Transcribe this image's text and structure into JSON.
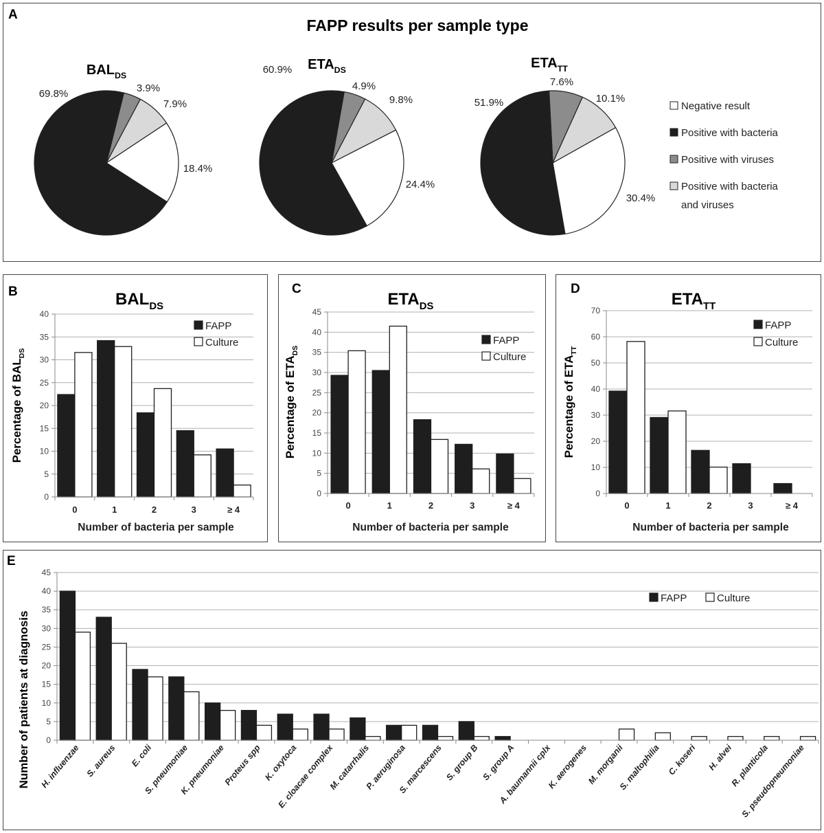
{
  "panel_a": {
    "letter": "A",
    "title": "FAPP results per sample type",
    "legend": [
      "Negative result",
      "Positive with bacteria",
      "Positive with viruses",
      "Positive with bacteria",
      "and viruses"
    ]
  },
  "colors": {
    "negative": "#ffffff",
    "bacteria": "#1e1e1e",
    "viruses": "#8c8c8c",
    "both": "#d9d9d9",
    "fapp": "#1e1e1e",
    "culture": "#ffffff",
    "grid": "#b0b0b0"
  },
  "chart_data": [
    {
      "type": "pie",
      "title": {
        "main": "BAL",
        "sub": "DS"
      },
      "categories": [
        "Negative result",
        "Positive with bacteria",
        "Positive with viruses",
        "Positive with bacteria and viruses"
      ],
      "values": [
        18.4,
        69.8,
        3.9,
        7.9
      ],
      "labels": [
        "18.4%",
        "69.8%",
        "3.9%",
        "7.9%"
      ]
    },
    {
      "type": "pie",
      "title": {
        "main": "ETA",
        "sub": "DS"
      },
      "categories": [
        "Negative result",
        "Positive with bacteria",
        "Positive with viruses",
        "Positive with bacteria and viruses"
      ],
      "values": [
        24.4,
        60.9,
        4.9,
        9.8
      ],
      "labels": [
        "24.4%",
        "60.9%",
        "4.9%",
        "9.8%"
      ]
    },
    {
      "type": "pie",
      "title": {
        "main": "ETA",
        "sub": "TT"
      },
      "categories": [
        "Negative result",
        "Positive with bacteria",
        "Positive with viruses",
        "Positive with bacteria and viruses"
      ],
      "values": [
        30.4,
        51.9,
        7.6,
        10.1
      ],
      "labels": [
        "30.4%",
        "51.9%",
        "7.6%",
        "10.1%"
      ]
    },
    {
      "type": "bar",
      "letter": "B",
      "title": {
        "main": "BAL",
        "sub": "DS"
      },
      "ylabel": {
        "main": "Percentage of BAL",
        "sub": "DS"
      },
      "xlabel": "Number of bacteria per sample",
      "categories": [
        "0",
        "1",
        "2",
        "3",
        "≥ 4"
      ],
      "ylim": [
        0,
        40
      ],
      "yticks": [
        "0",
        "5",
        "10",
        "15",
        "20",
        "25",
        "30",
        "35",
        "40"
      ],
      "grid": true,
      "legend_position": "top-right",
      "series": [
        {
          "name": "FAPP",
          "values": [
            22.4,
            34.2,
            18.4,
            14.5,
            10.5
          ]
        },
        {
          "name": "Culture",
          "values": [
            31.6,
            32.9,
            23.7,
            9.2,
            2.6
          ]
        }
      ]
    },
    {
      "type": "bar",
      "letter": "C",
      "title": {
        "main": "ETA",
        "sub": "DS"
      },
      "ylabel": {
        "main": "Percentage of ETA",
        "sub": "DS"
      },
      "xlabel": "Number of bacteria per sample",
      "categories": [
        "0",
        "1",
        "2",
        "3",
        "≥ 4"
      ],
      "ylim": [
        0,
        45
      ],
      "yticks": [
        "0",
        "5",
        "10",
        "15",
        "20",
        "25",
        "30",
        "35",
        "40",
        "45"
      ],
      "grid": true,
      "legend_position": "top-right",
      "series": [
        {
          "name": "FAPP",
          "values": [
            29.3,
            30.5,
            18.3,
            12.2,
            9.8
          ]
        },
        {
          "name": "Culture",
          "values": [
            35.4,
            41.5,
            13.4,
            6.1,
            3.7
          ]
        }
      ]
    },
    {
      "type": "bar",
      "letter": "D",
      "title": {
        "main": "ETA",
        "sub": "TT"
      },
      "ylabel": {
        "main": "Percentage of ETA",
        "sub": "TT"
      },
      "xlabel": "Number of bacteria per sample",
      "categories": [
        "0",
        "1",
        "2",
        "3",
        "≥ 4"
      ],
      "ylim": [
        0,
        70
      ],
      "yticks": [
        "0",
        "10",
        "20",
        "30",
        "40",
        "50",
        "60",
        "70"
      ],
      "grid": true,
      "legend_position": "top-right",
      "series": [
        {
          "name": "FAPP",
          "values": [
            39.2,
            29.1,
            16.5,
            11.4,
            3.8
          ]
        },
        {
          "name": "Culture",
          "values": [
            58.2,
            31.6,
            10.1,
            0,
            0
          ]
        }
      ]
    },
    {
      "type": "bar",
      "letter": "E",
      "ylabel": {
        "main": "Number of patients at diagnosis",
        "sub": ""
      },
      "xlabel": "",
      "categories": [
        "H. influenzae",
        "S. aureus",
        "E. coli",
        "S. pneumoniae",
        "K. pneumoniae",
        "Proteus spp",
        "K. oxytoca",
        "E. cloacae complex",
        "M. catarrhalis",
        "P. aeruginosa",
        "S. marcescens",
        "S. group B",
        "S. group A",
        "A. baumannii cplx",
        "K. aerogenes",
        "M. morganii",
        "S. maltophilia",
        "C. koseri",
        "H. alvei",
        "R. planticola",
        "S. pseudopneumoniae"
      ],
      "ylim": [
        0,
        45
      ],
      "yticks": [
        "0",
        "5",
        "10",
        "15",
        "20",
        "25",
        "30",
        "35",
        "40",
        "45"
      ],
      "grid": true,
      "legend_position": "top-right",
      "series": [
        {
          "name": "FAPP",
          "values": [
            40,
            33,
            19,
            17,
            10,
            8,
            7,
            7,
            6,
            4,
            4,
            5,
            1,
            0,
            0,
            0,
            0,
            0,
            0,
            0,
            0
          ]
        },
        {
          "name": "Culture",
          "values": [
            29,
            26,
            17,
            13,
            8,
            4,
            3,
            3,
            1,
            4,
            1,
            1,
            0,
            0,
            0,
            3,
            2,
            1,
            1,
            1,
            1
          ]
        }
      ]
    }
  ]
}
